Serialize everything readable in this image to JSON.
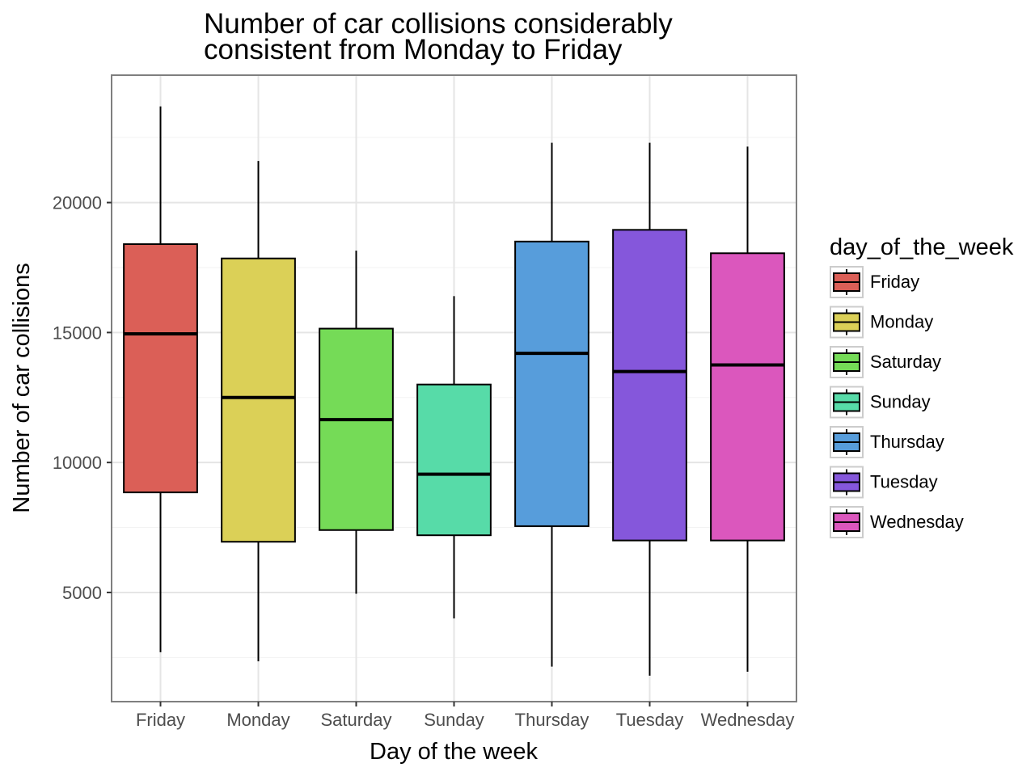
{
  "chart_data": {
    "type": "boxplot",
    "title_lines": [
      "Number of car collisions considerably",
      "consistent from Monday to Friday"
    ],
    "xlabel": "Day of the week",
    "ylabel": "Number of car collisions",
    "ylim": [
      800,
      24900
    ],
    "y_ticks": [
      5000,
      10000,
      15000,
      20000
    ],
    "y_tick_labels": [
      "5000",
      "10000",
      "15000",
      "20000"
    ],
    "grid": true,
    "legend": {
      "title": "day_of_the_week",
      "position": "right"
    },
    "categories": [
      "Friday",
      "Monday",
      "Saturday",
      "Sunday",
      "Thursday",
      "Tuesday",
      "Wednesday"
    ],
    "boxes": [
      {
        "category": "Friday",
        "color": "#db5f57",
        "min": 2700,
        "q1": 8850,
        "median": 14950,
        "q3": 18400,
        "max": 23700
      },
      {
        "category": "Monday",
        "color": "#dbd057",
        "min": 2350,
        "q1": 6950,
        "median": 12500,
        "q3": 17850,
        "max": 21600
      },
      {
        "category": "Saturday",
        "color": "#75db57",
        "min": 4950,
        "q1": 7400,
        "median": 11650,
        "q3": 15150,
        "max": 18150
      },
      {
        "category": "Sunday",
        "color": "#57dba8",
        "min": 4000,
        "q1": 7200,
        "median": 9550,
        "q3": 13000,
        "max": 16400
      },
      {
        "category": "Thursday",
        "color": "#579ddb",
        "min": 2150,
        "q1": 7550,
        "median": 14200,
        "q3": 18500,
        "max": 22300
      },
      {
        "category": "Tuesday",
        "color": "#8557db",
        "min": 1800,
        "q1": 7000,
        "median": 13500,
        "q3": 18950,
        "max": 22300
      },
      {
        "category": "Wednesday",
        "color": "#db57bd",
        "min": 1950,
        "q1": 7000,
        "median": 13750,
        "q3": 18050,
        "max": 22150
      }
    ]
  }
}
